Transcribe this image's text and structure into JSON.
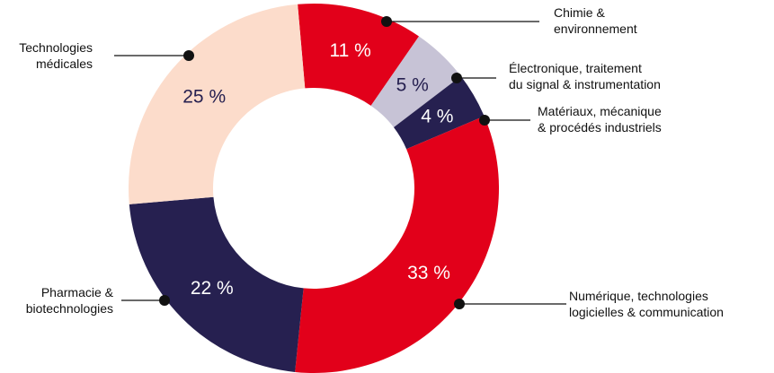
{
  "chart_data": {
    "type": "pie",
    "donut": true,
    "title": "",
    "slices": [
      {
        "label": "Chimie & environnement",
        "label_lines": [
          "Chimie &",
          "environnement"
        ],
        "value": 11,
        "value_label": "11 %",
        "color": "#e2001a",
        "text_color": "#ffffff",
        "label_side": "right"
      },
      {
        "label": "Électronique, traitement du signal & instrumentation",
        "label_lines": [
          "Électronique, traitement",
          "du signal & instrumentation"
        ],
        "value": 5,
        "value_label": "5 %",
        "color": "#c7c3d6",
        "text_color": "#262050",
        "label_side": "right"
      },
      {
        "label": "Matériaux, mécanique & procédés industriels",
        "label_lines": [
          "Matériaux, mécanique",
          "& procédés industriels"
        ],
        "value": 4,
        "value_label": "4 %",
        "color": "#262050",
        "text_color": "#ffffff",
        "label_side": "right"
      },
      {
        "label": "Numérique, technologies logicielles & communication",
        "label_lines": [
          "Numérique, technologies",
          "logicielles & communication"
        ],
        "value": 33,
        "value_label": "33 %",
        "color": "#e2001a",
        "text_color": "#ffffff",
        "label_side": "right"
      },
      {
        "label": "Pharmacie & biotechnologies",
        "label_lines": [
          "Pharmacie &",
          "biotechnologies"
        ],
        "value": 22,
        "value_label": "22 %",
        "color": "#262050",
        "text_color": "#ffffff",
        "label_side": "left"
      },
      {
        "label": "Technologies médicales",
        "label_lines": [
          "Technologies",
          "médicales"
        ],
        "value": 25,
        "value_label": "25 %",
        "color": "#fcdccb",
        "text_color": "#262050",
        "label_side": "left"
      }
    ]
  }
}
